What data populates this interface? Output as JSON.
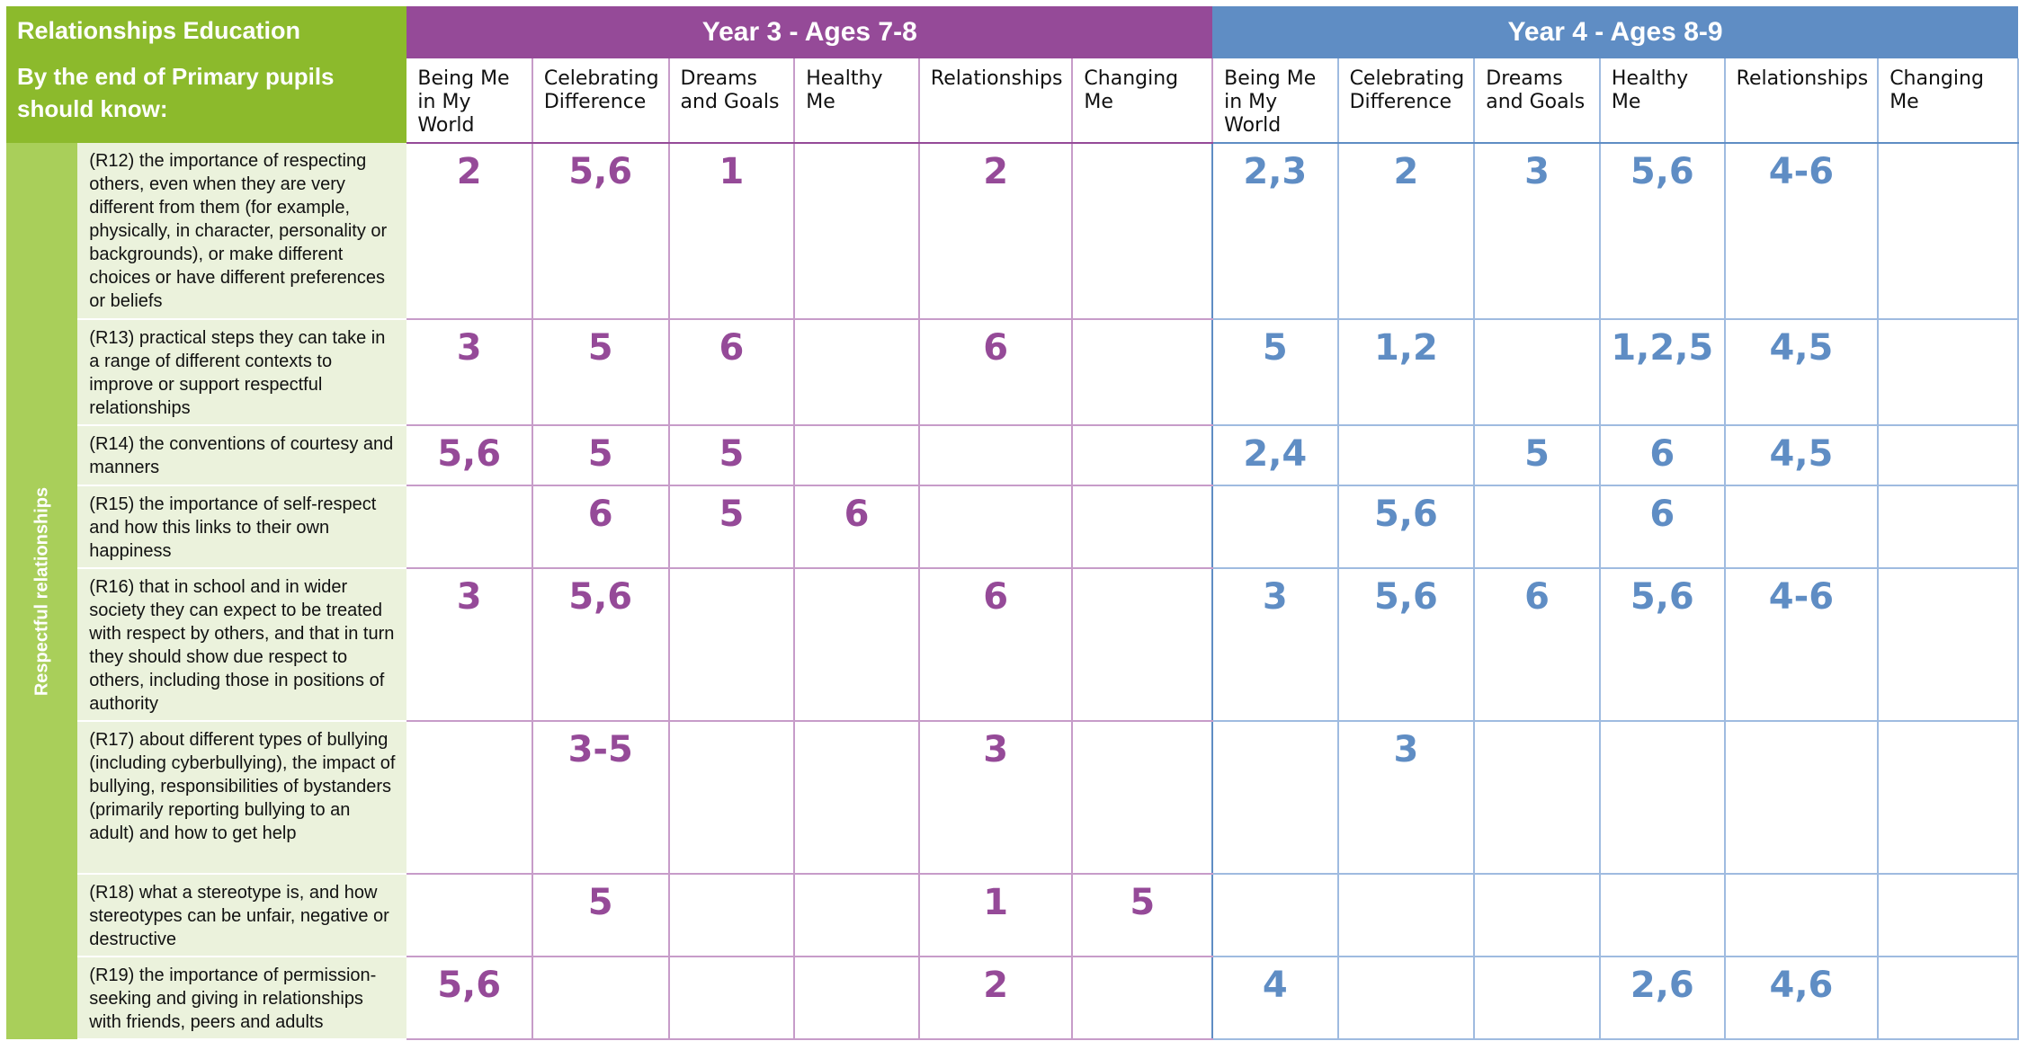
{
  "header": {
    "title": "Relationships Education",
    "subtitle": "By the end of Primary pupils should know:",
    "year3": "Year 3 - Ages 7-8",
    "year4": "Year 4 - Ages 8-9",
    "columns": [
      "Being Me in My World",
      "Celebrating Difference",
      "Dreams and Goals",
      "Healthy Me",
      "Relationships",
      "Changing Me"
    ]
  },
  "section": "Respectful relationships",
  "rows": [
    {
      "text": "(R12) the importance of respecting others, even when they are very different from them (for example, physically, in character, personality or backgrounds), or make different choices or have different preferences or beliefs",
      "y3": [
        "2",
        "5,6",
        "1",
        "",
        "2",
        ""
      ],
      "y4": [
        "2,3",
        "2",
        "3",
        "5,6",
        "4-6",
        ""
      ]
    },
    {
      "text": "(R13) practical steps they can take in a range of different contexts to improve or support respectful relationships",
      "y3": [
        "3",
        "5",
        "6",
        "",
        "6",
        ""
      ],
      "y4": [
        "5",
        "1,2",
        "",
        "1,2,5",
        "4,5",
        ""
      ]
    },
    {
      "text": "(R14) the conventions of courtesy and manners",
      "y3": [
        "5,6",
        "5",
        "5",
        "",
        "",
        ""
      ],
      "y4": [
        "2,4",
        "",
        "5",
        "6",
        "4,5",
        ""
      ]
    },
    {
      "text": "(R15) the importance of self-respect and how this links to their own happiness",
      "y3": [
        "",
        "6",
        "5",
        "6",
        "",
        ""
      ],
      "y4": [
        "",
        "5,6",
        "",
        "6",
        "",
        ""
      ]
    },
    {
      "text": "(R16) that in school and in wider society they can expect to be treated with respect by others, and that in turn they should show due respect to others, including those in positions of authority",
      "y3": [
        "3",
        "5,6",
        "",
        "",
        "6",
        ""
      ],
      "y4": [
        "3",
        "5,6",
        "6",
        "5,6",
        "4-6",
        ""
      ]
    },
    {
      "text": "(R17) about different types of bullying (including cyberbullying), the impact of bullying, responsibilities of bystanders (primarily reporting bullying to an adult) and how to get help",
      "y3": [
        "",
        "3-5",
        "",
        "",
        "3",
        ""
      ],
      "y4": [
        "",
        "3",
        "",
        "",
        "",
        ""
      ]
    },
    {
      "text": "(R18) what a stereotype is, and how stereotypes can be unfair, negative or destructive",
      "y3": [
        "",
        "5",
        "",
        "",
        "1",
        "5"
      ],
      "y4": [
        "",
        "",
        "",
        "",
        "",
        ""
      ]
    },
    {
      "text": "(R19) the importance of permission-seeking and giving in relationships with friends, peers and adults",
      "y3": [
        "5,6",
        "",
        "",
        "",
        "2",
        ""
      ],
      "y4": [
        "4",
        "",
        "",
        "2,6",
        "4,6",
        ""
      ]
    }
  ],
  "colors": {
    "green": "#8cba2c",
    "purple": "#954a98",
    "blue": "#5f8dc4",
    "lightgreen": "#ebf2dc"
  }
}
